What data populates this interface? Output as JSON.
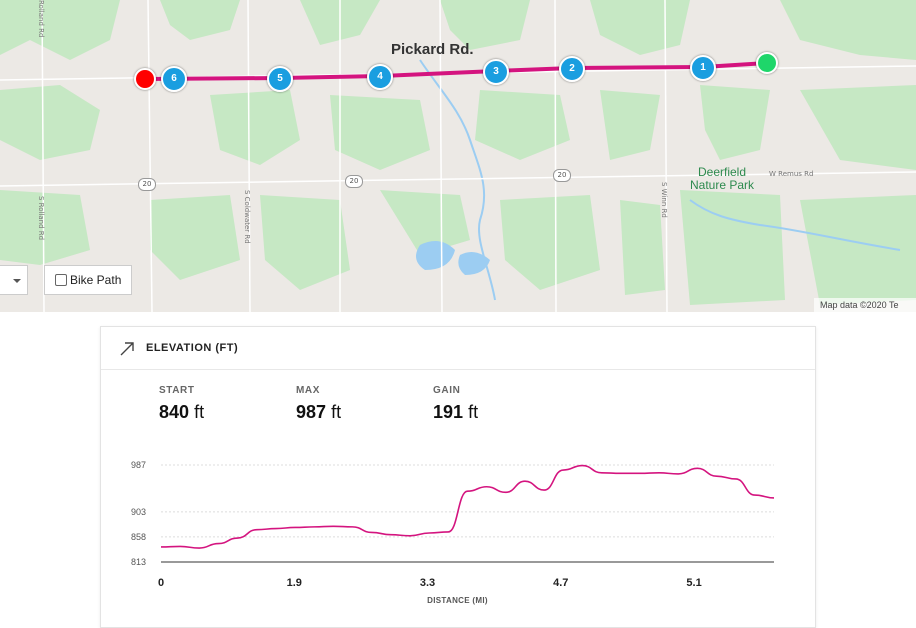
{
  "map": {
    "place_label": "Pickard Rd.",
    "park_label_line1": "Deerfield",
    "park_label_line2": "Nature Park",
    "road_labels": [
      "W Remus Rd",
      "S Coldwater Rd",
      "S Rolland Rd",
      "S Winn Rd",
      "Rolland Rd"
    ],
    "highway_shield": "20",
    "markers": [
      "6",
      "5",
      "4",
      "3",
      "2",
      "1"
    ],
    "start_marker_color": "#1ed66a",
    "end_marker_color": "#ff0000",
    "marker_color": "#1a9ee0",
    "route_color": "#d4147f",
    "bike_path_label": "Bike Path",
    "bike_path_checked": false,
    "attribution": "Map data ©2020   Te"
  },
  "elevation": {
    "title": "ELEVATION (FT)",
    "stats": [
      {
        "label": "START",
        "value": "840",
        "unit": "ft"
      },
      {
        "label": "MAX",
        "value": "987",
        "unit": "ft"
      },
      {
        "label": "GAIN",
        "value": "191",
        "unit": "ft"
      }
    ]
  },
  "chart_data": {
    "type": "line",
    "xlabel": "DISTANCE (MI)",
    "ylabel": "",
    "y_ticks": [
      "987",
      "903",
      "858",
      "813"
    ],
    "x_tick_labels": [
      "0",
      "1.9",
      "3.3",
      "4.7",
      "5.1"
    ],
    "ylim": [
      813,
      987
    ],
    "line_color": "#d4147f",
    "series": [
      {
        "values": [
          840,
          841,
          838,
          846,
          856,
          871,
          873,
          875,
          876,
          877,
          876,
          866,
          862,
          860,
          865,
          867,
          940,
          948,
          938,
          958,
          942,
          978,
          986,
          973,
          972,
          972,
          973,
          971,
          981,
          967,
          962,
          933,
          928
        ]
      }
    ]
  }
}
